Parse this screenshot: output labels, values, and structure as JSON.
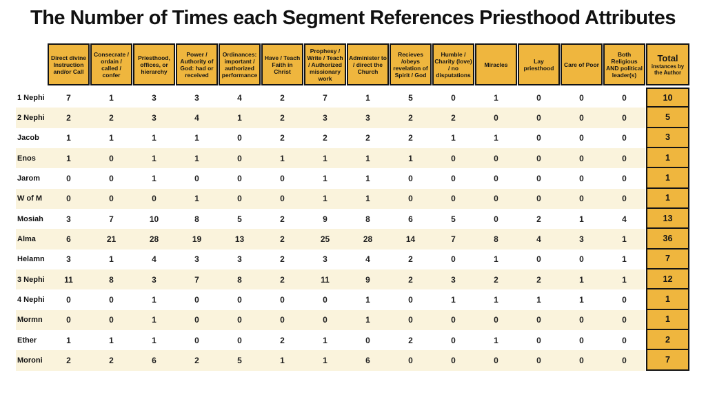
{
  "title": "The Number of Times each Segment  References Priesthood Attributes",
  "colors": {
    "gold": "#EFB63E",
    "cream": "#FAF3DC",
    "border": "#141414"
  },
  "table": {
    "column_headers": [
      "Direct divine Instruction and/or Call",
      "Consecrate / ordain / called / confer",
      "Priesthood, offices, or hierarchy",
      "Power / Authority of God: had or received",
      "Ordinances: important / authorized performance",
      "Have / Teach Faith in Christ",
      "Prophesy / Write / Teach / Authorized missionary work",
      "Administer to / direct the Church",
      "Recieves /obeys revelation of Spirit / God",
      "Humble / Charity (love) / no disputations",
      "Miracles",
      "Lay priesthood",
      "Care of Poor",
      "Both Religious AND political leader(s)"
    ],
    "total_header": {
      "label": "Total",
      "sublabel": "instances by the Author"
    },
    "rows": [
      {
        "label": "1 Nephi",
        "values": [
          7,
          1,
          3,
          3,
          4,
          2,
          7,
          1,
          5,
          0,
          1,
          0,
          0,
          0
        ],
        "total": 10
      },
      {
        "label": "2 Nephi",
        "values": [
          2,
          2,
          3,
          4,
          1,
          2,
          3,
          3,
          2,
          2,
          0,
          0,
          0,
          0
        ],
        "total": 5
      },
      {
        "label": "Jacob",
        "values": [
          1,
          1,
          1,
          1,
          0,
          2,
          2,
          2,
          2,
          1,
          1,
          0,
          0,
          0
        ],
        "total": 3
      },
      {
        "label": "Enos",
        "values": [
          1,
          0,
          1,
          1,
          0,
          1,
          1,
          1,
          1,
          0,
          0,
          0,
          0,
          0
        ],
        "total": 1
      },
      {
        "label": "Jarom",
        "values": [
          0,
          0,
          1,
          0,
          0,
          0,
          1,
          1,
          0,
          0,
          0,
          0,
          0,
          0
        ],
        "total": 1
      },
      {
        "label": "W of M",
        "values": [
          0,
          0,
          0,
          1,
          0,
          0,
          1,
          1,
          0,
          0,
          0,
          0,
          0,
          0
        ],
        "total": 1
      },
      {
        "label": "Mosiah",
        "values": [
          3,
          7,
          10,
          8,
          5,
          2,
          9,
          8,
          6,
          5,
          0,
          2,
          1,
          4
        ],
        "total": 13
      },
      {
        "label": "Alma",
        "values": [
          6,
          21,
          28,
          19,
          13,
          2,
          25,
          28,
          14,
          7,
          8,
          4,
          3,
          1
        ],
        "total": 36
      },
      {
        "label": "Helamn",
        "values": [
          3,
          1,
          4,
          3,
          3,
          2,
          3,
          4,
          2,
          0,
          1,
          0,
          0,
          1
        ],
        "total": 7
      },
      {
        "label": "3 Nephi",
        "values": [
          11,
          8,
          3,
          7,
          8,
          2,
          11,
          9,
          2,
          3,
          2,
          2,
          1,
          1
        ],
        "total": 12
      },
      {
        "label": "4 Nephi",
        "values": [
          0,
          0,
          1,
          0,
          0,
          0,
          0,
          1,
          0,
          1,
          1,
          1,
          1,
          0
        ],
        "total": 1
      },
      {
        "label": "Mormn",
        "values": [
          0,
          0,
          1,
          0,
          0,
          0,
          0,
          1,
          0,
          0,
          0,
          0,
          0,
          0
        ],
        "total": 1
      },
      {
        "label": "Ether",
        "values": [
          1,
          1,
          1,
          0,
          0,
          2,
          1,
          0,
          2,
          0,
          1,
          0,
          0,
          0
        ],
        "total": 2
      },
      {
        "label": "Moroni",
        "values": [
          2,
          2,
          6,
          2,
          5,
          1,
          1,
          6,
          0,
          0,
          0,
          0,
          0,
          0
        ],
        "total": 7
      }
    ]
  },
  "chart_data": {
    "type": "table",
    "title": "The Number of Times each Segment  References Priesthood Attributes",
    "columns": [
      "Direct divine Instruction and/or Call",
      "Consecrate / ordain / called / confer",
      "Priesthood, offices, or hierarchy",
      "Power / Authority of God: had or received",
      "Ordinances: important / authorized performance",
      "Have / Teach Faith in Christ",
      "Prophesy / Write / Teach / Authorized missionary work",
      "Administer to / direct the Church",
      "Recieves /obeys revelation of Spirit / God",
      "Humble / Charity (love) / no disputations",
      "Miracles",
      "Lay priesthood",
      "Care of Poor",
      "Both Religious AND political leader(s)",
      "Total instances by the Author"
    ],
    "rows": [
      "1 Nephi",
      "2 Nephi",
      "Jacob",
      "Enos",
      "Jarom",
      "W of M",
      "Mosiah",
      "Alma",
      "Helamn",
      "3 Nephi",
      "4 Nephi",
      "Mormn",
      "Ether",
      "Moroni"
    ],
    "values": [
      [
        7,
        1,
        3,
        3,
        4,
        2,
        7,
        1,
        5,
        0,
        1,
        0,
        0,
        0,
        10
      ],
      [
        2,
        2,
        3,
        4,
        1,
        2,
        3,
        3,
        2,
        2,
        0,
        0,
        0,
        0,
        5
      ],
      [
        1,
        1,
        1,
        1,
        0,
        2,
        2,
        2,
        2,
        1,
        1,
        0,
        0,
        0,
        3
      ],
      [
        1,
        0,
        1,
        1,
        0,
        1,
        1,
        1,
        1,
        0,
        0,
        0,
        0,
        0,
        1
      ],
      [
        0,
        0,
        1,
        0,
        0,
        0,
        1,
        1,
        0,
        0,
        0,
        0,
        0,
        0,
        1
      ],
      [
        0,
        0,
        0,
        1,
        0,
        0,
        1,
        1,
        0,
        0,
        0,
        0,
        0,
        0,
        1
      ],
      [
        3,
        7,
        10,
        8,
        5,
        2,
        9,
        8,
        6,
        5,
        0,
        2,
        1,
        4,
        13
      ],
      [
        6,
        21,
        28,
        19,
        13,
        2,
        25,
        28,
        14,
        7,
        8,
        4,
        3,
        1,
        36
      ],
      [
        3,
        1,
        4,
        3,
        3,
        2,
        3,
        4,
        2,
        0,
        1,
        0,
        0,
        1,
        7
      ],
      [
        11,
        8,
        3,
        7,
        8,
        2,
        11,
        9,
        2,
        3,
        2,
        2,
        1,
        1,
        12
      ],
      [
        0,
        0,
        1,
        0,
        0,
        0,
        0,
        1,
        0,
        1,
        1,
        1,
        1,
        0,
        1
      ],
      [
        0,
        0,
        1,
        0,
        0,
        0,
        0,
        1,
        0,
        0,
        0,
        0,
        0,
        0,
        1
      ],
      [
        1,
        1,
        1,
        0,
        0,
        2,
        1,
        0,
        2,
        0,
        1,
        0,
        0,
        0,
        2
      ],
      [
        2,
        2,
        6,
        2,
        5,
        1,
        1,
        6,
        0,
        0,
        0,
        0,
        0,
        0,
        7
      ]
    ]
  }
}
